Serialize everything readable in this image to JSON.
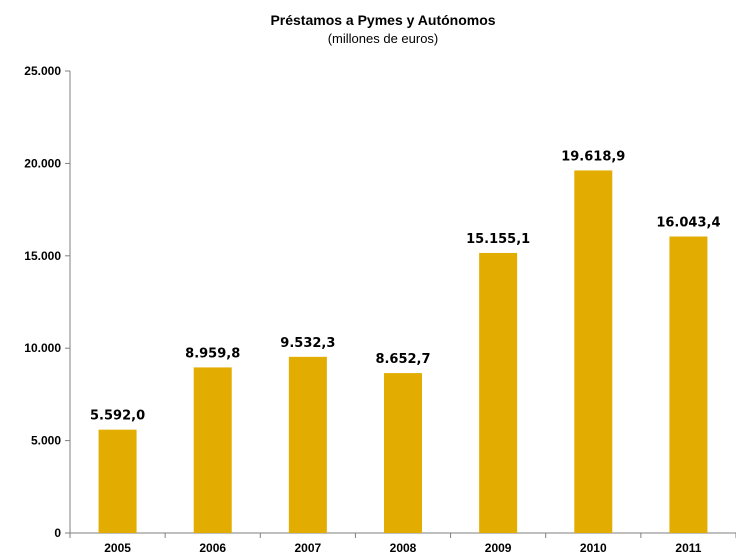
{
  "chart_data": {
    "type": "bar",
    "title": "Préstamos a Pymes y Autónomos",
    "subtitle": "(millones de euros)",
    "xlabel": "",
    "ylabel": "",
    "categories": [
      "2005",
      "2006",
      "2007",
      "2008",
      "2009",
      "2010",
      "2011"
    ],
    "values": [
      5592.0,
      8959.8,
      9532.3,
      8652.7,
      15155.1,
      19618.9,
      16043.4
    ],
    "data_labels": [
      "5.592,0",
      "8.959,8",
      "9.532,3",
      "8.652,7",
      "15.155,1",
      "19.618,9",
      "16.043,4"
    ],
    "ylim": [
      0,
      25000
    ],
    "yticks": [
      0,
      5000,
      10000,
      15000,
      20000,
      25000
    ],
    "ytick_labels": [
      "0",
      "5.000",
      "10.000",
      "15.000",
      "20.000",
      "25.000"
    ],
    "grid": false,
    "legend": "none",
    "bar_color": "#E2AC00",
    "axis_color": "#7F7F7F"
  }
}
